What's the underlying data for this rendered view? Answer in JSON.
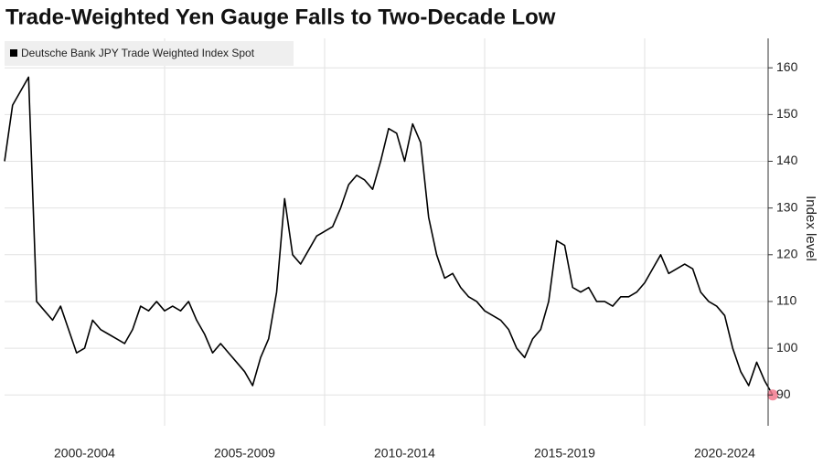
{
  "chart_data": {
    "type": "line",
    "title": "Trade-Weighted Yen Gauge Falls to Two-Decade Low",
    "y_label": "Index level",
    "x_labels": [
      "2000-2004",
      "2005-2009",
      "2010-2014",
      "2015-2019",
      "2020-2024"
    ],
    "series": [
      {
        "name": "Deutsche Bank JPY Trade Weighted Index Spot",
        "color": "#000000",
        "values": [
          140,
          152,
          155,
          158,
          110,
          108,
          106,
          109,
          104,
          99,
          100,
          106,
          104,
          103,
          102,
          101,
          104,
          109,
          108,
          110,
          108,
          109,
          108,
          110,
          106,
          103,
          99,
          101,
          99,
          97,
          95,
          92,
          98,
          102,
          112,
          132,
          120,
          118,
          121,
          124,
          125,
          126,
          130,
          135,
          137,
          136,
          134,
          140,
          147,
          146,
          140,
          148,
          144,
          128,
          120,
          115,
          116,
          113,
          111,
          110,
          108,
          107,
          106,
          104,
          100,
          98,
          102,
          104,
          110,
          123,
          122,
          113,
          112,
          113,
          110,
          110,
          109,
          111,
          111,
          112,
          114,
          117,
          120,
          116,
          117,
          118,
          117,
          112,
          110,
          109,
          107,
          100,
          95,
          92,
          97,
          93,
          90
        ]
      }
    ],
    "marker_color": "#f27a8e",
    "ylim": [
      83.4,
      166.3
    ],
    "yticks": [
      90,
      100,
      110,
      120,
      130,
      140,
      150,
      160
    ],
    "grid": true
  }
}
